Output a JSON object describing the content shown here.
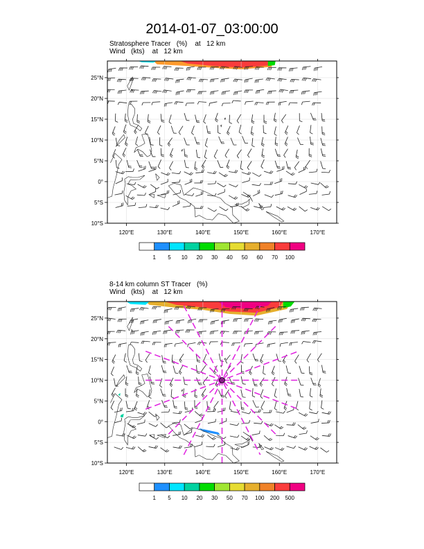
{
  "page_title": "2014-01-07_03:00:00",
  "chart_data": [
    {
      "type": "heatmap",
      "title_line1": "Stratosphere Tracer   (%)    at   12 km",
      "title_line2": "Wind   (kts)    at   12 km",
      "x_axis": {
        "range_deg_e": [
          115,
          175
        ],
        "ticks": [
          120,
          130,
          140,
          150,
          160,
          170
        ],
        "tick_labels": [
          "120°E",
          "130°E",
          "140°E",
          "150°E",
          "160°E",
          "170°E"
        ]
      },
      "y_axis": {
        "range_deg_n": [
          -10,
          29
        ],
        "ticks": [
          -10,
          -5,
          0,
          5,
          10,
          15,
          20,
          25
        ],
        "tick_labels": [
          "10°S",
          "5°S",
          "0°",
          "5°N",
          "10°N",
          "15°N",
          "20°N",
          "25°N"
        ]
      },
      "grid": true,
      "colorbar": {
        "labels": [
          "1",
          "5",
          "10",
          "20",
          "30",
          "40",
          "50",
          "60",
          "70",
          "100"
        ],
        "colors": [
          "#ffffff",
          "#1e90ff",
          "#00e5ff",
          "#00d2a0",
          "#00dc00",
          "#a0e632",
          "#e6dc32",
          "#e6af2d",
          "#f08228",
          "#fa3c3c",
          "#f00082"
        ]
      },
      "tracer_band": "High tracer values (70-100%) along the northern edge, roughly 125°E-158°E near 27°N-29°N",
      "overlay_lines": []
    },
    {
      "type": "heatmap",
      "title_line1": "8-14 km column ST Tracer   (%)",
      "title_line2": "Wind   (kts)    at   12 km",
      "x_axis": {
        "range_deg_e": [
          115,
          175
        ],
        "ticks": [
          120,
          130,
          140,
          150,
          160,
          170
        ],
        "tick_labels": [
          "120°E",
          "130°E",
          "140°E",
          "150°E",
          "160°E",
          "170°E"
        ]
      },
      "y_axis": {
        "range_deg_n": [
          -10,
          29
        ],
        "ticks": [
          -10,
          -5,
          0,
          5,
          10,
          15,
          20,
          25
        ],
        "tick_labels": [
          "10°S",
          "5°S",
          "0°",
          "5°N",
          "10°N",
          "15°N",
          "20°N",
          "25°N"
        ]
      },
      "grid": true,
      "colorbar": {
        "labels": [
          "1",
          "5",
          "10",
          "20",
          "30",
          "50",
          "70",
          "100",
          "200",
          "500"
        ],
        "colors": [
          "#ffffff",
          "#1e90ff",
          "#00e5ff",
          "#00d2a0",
          "#00dc00",
          "#a0e632",
          "#e6dc32",
          "#e6af2d",
          "#f08228",
          "#fa3c3c",
          "#f00082"
        ]
      },
      "tracer_band": "High column tracer values (200-500%) along the northern edge, roughly 125°E-162°E near 26°N-29°N",
      "storm_center": {
        "lon": 145.0,
        "lat": 10.0
      },
      "overlay_lines": [
        {
          "lon1": 125,
          "lat1": 10,
          "lon2": 165,
          "lat2": 10
        },
        {
          "lon1": 145,
          "lat1": -10,
          "lon2": 145,
          "lat2": 29
        },
        {
          "lon1": 131,
          "lat1": 23,
          "lon2": 159,
          "lat2": -3
        },
        {
          "lon1": 131,
          "lat1": -3,
          "lon2": 159,
          "lat2": 23
        },
        {
          "lon1": 135,
          "lat1": 28,
          "lon2": 155,
          "lat2": -8
        },
        {
          "lon1": 135,
          "lat1": -8,
          "lon2": 155,
          "lat2": 28
        },
        {
          "lon1": 125,
          "lat1": 17,
          "lon2": 165,
          "lat2": 3
        },
        {
          "lon1": 125,
          "lat1": 3,
          "lon2": 165,
          "lat2": 17
        }
      ]
    }
  ]
}
